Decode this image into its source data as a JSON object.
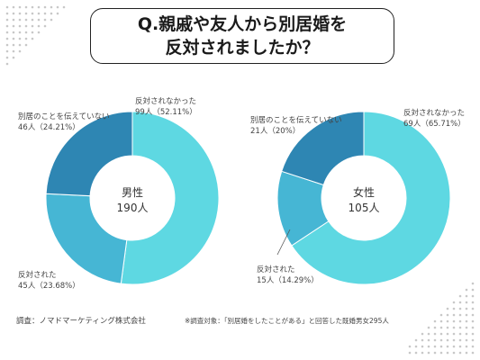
{
  "title": {
    "line1": "Q.親戚や友人から別居婚を",
    "line2": "反対されましたか？"
  },
  "colors": {
    "not_opposed": "#5ed8e2",
    "opposed": "#46b6d4",
    "not_told": "#2e86b3",
    "decor_dots": "#c8c8c8"
  },
  "chart_data": [
    {
      "type": "pie",
      "center_label": "男性",
      "center_value": "190人",
      "slices": [
        {
          "name": "反対されなかった",
          "count": 99,
          "percent": 52.11,
          "value_label": "99人（52.11%）",
          "color": "#5ed8e2"
        },
        {
          "name": "反対された",
          "count": 45,
          "percent": 23.68,
          "value_label": "45人（23.68%）",
          "color": "#46b6d4"
        },
        {
          "name": "別居のことを伝えていない",
          "count": 46,
          "percent": 24.21,
          "value_label": "46人（24.21%）",
          "color": "#2e86b3"
        }
      ]
    },
    {
      "type": "pie",
      "center_label": "女性",
      "center_value": "105人",
      "slices": [
        {
          "name": "反対されなかった",
          "count": 69,
          "percent": 65.71,
          "value_label": "69人（65.71%）",
          "color": "#5ed8e2"
        },
        {
          "name": "反対された",
          "count": 15,
          "percent": 14.29,
          "value_label": "15人（14.29%）",
          "color": "#46b6d4"
        },
        {
          "name": "別居のことを伝えていない",
          "count": 21,
          "percent": 20.0,
          "value_label": "21人（20%）",
          "color": "#2e86b3"
        }
      ]
    }
  ],
  "footer": {
    "source": "調査：ノマドマーケティング株式会社",
    "note": "※調査対象：「別居婚をしたことがある」と回答した既婚男女295人"
  }
}
